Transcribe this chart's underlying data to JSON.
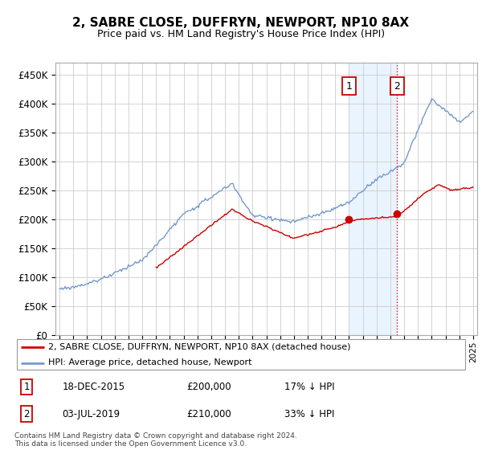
{
  "title": "2, SABRE CLOSE, DUFFRYN, NEWPORT, NP10 8AX",
  "subtitle": "Price paid vs. HM Land Registry's House Price Index (HPI)",
  "ylim": [
    0,
    470000
  ],
  "yticks": [
    0,
    50000,
    100000,
    150000,
    200000,
    250000,
    300000,
    350000,
    400000,
    450000
  ],
  "hpi_color": "#7799cc",
  "price_color": "#cc0000",
  "sale1_date_label": "18-DEC-2015",
  "sale1_price": 200000,
  "sale1_pct": "17%",
  "sale1_x": 2016.0,
  "sale2_date_label": "03-JUL-2019",
  "sale2_price": 210000,
  "sale2_x": 2019.5,
  "sale2_pct": "33%",
  "legend_label1": "2, SABRE CLOSE, DUFFRYN, NEWPORT, NP10 8AX (detached house)",
  "legend_label2": "HPI: Average price, detached house, Newport",
  "footer": "Contains HM Land Registry data © Crown copyright and database right 2024.\nThis data is licensed under the Open Government Licence v3.0.",
  "shade_color": "#ddeeff",
  "xlim_left": 1994.7,
  "xlim_right": 2025.3
}
